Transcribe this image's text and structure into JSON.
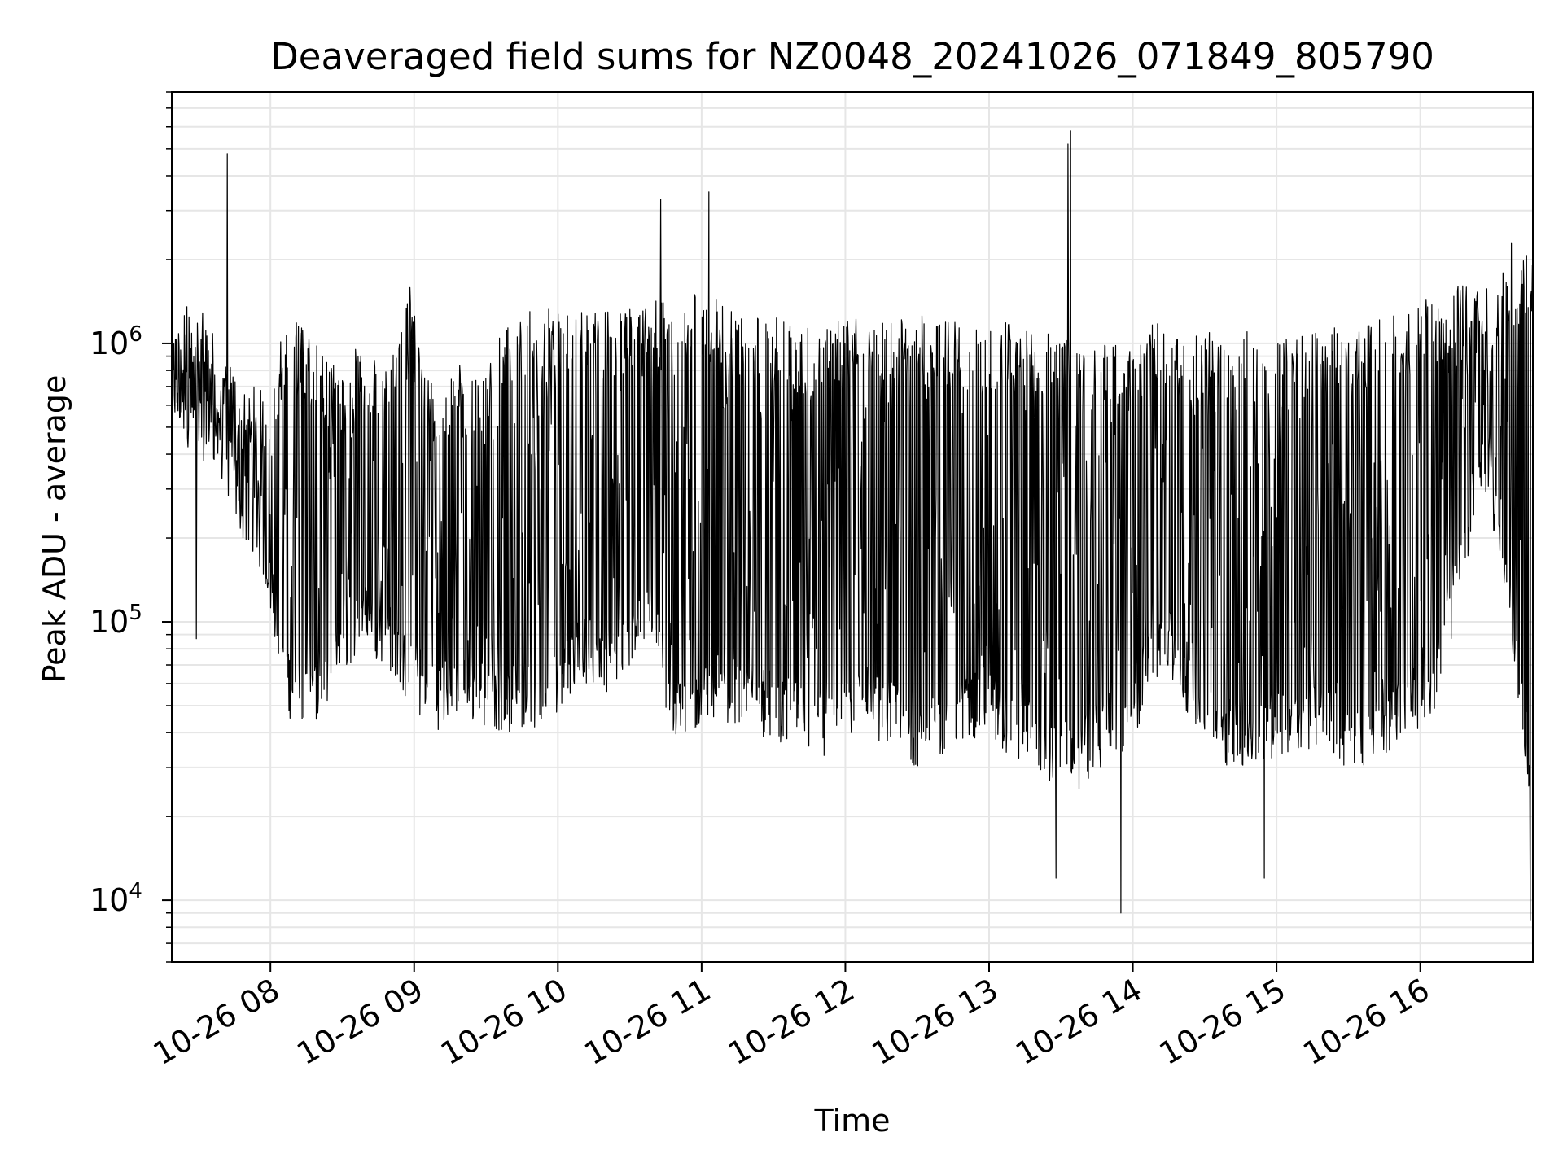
{
  "chart_data": {
    "type": "line",
    "title": "Deaveraged field sums for NZ0048_20241026_071849_805790",
    "xlabel": "Time",
    "ylabel": "Peak ADU - average",
    "yscale": "log",
    "xlim": [
      "2024-10-26 07:18:49",
      "2024-10-26 16:47:00"
    ],
    "ylim": [
      6000,
      8000000
    ],
    "x_ticks": [
      "2024-10-26 08:00",
      "2024-10-26 09:00",
      "2024-10-26 10:00",
      "2024-10-26 11:00",
      "2024-10-26 12:00",
      "2024-10-26 13:00",
      "2024-10-26 14:00",
      "2024-10-26 15:00",
      "2024-10-26 16:00"
    ],
    "x_tick_labels": [
      "10-26 08",
      "10-26 09",
      "10-26 10",
      "10-26 11",
      "10-26 12",
      "10-26 13",
      "10-26 14",
      "10-26 15",
      "10-26 16"
    ],
    "y_ticks": [
      {
        "value": 10000,
        "base": "10",
        "exp": "4"
      },
      {
        "value": 100000,
        "base": "10",
        "exp": "5"
      },
      {
        "value": 1000000,
        "base": "10",
        "exp": "6"
      }
    ],
    "grid": true,
    "line_color": "#000000",
    "grid_color": "#e6e6e6",
    "series": [
      {
        "x": [
          "07:18",
          "07:28",
          "07:38",
          "07:48",
          "07:58",
          "08:08",
          "08:18",
          "08:28",
          "08:38",
          "08:48",
          "08:58",
          "09:08",
          "09:18",
          "09:28",
          "09:38",
          "09:48",
          "09:58",
          "10:08",
          "10:18",
          "10:28",
          "10:38",
          "10:48",
          "10:58",
          "11:08",
          "11:18",
          "11:28",
          "11:38",
          "11:48",
          "11:58",
          "12:08",
          "12:18",
          "12:28",
          "12:38",
          "12:48",
          "12:58",
          "13:08",
          "13:18",
          "13:28",
          "13:38",
          "13:48",
          "13:58",
          "14:08",
          "14:18",
          "14:28",
          "14:38",
          "14:48",
          "14:58",
          "15:08",
          "15:18",
          "15:28",
          "15:38",
          "15:48",
          "15:58",
          "16:08",
          "16:18",
          "16:28",
          "16:38",
          "16:46"
        ],
        "low": [
          500000,
          400000,
          350000,
          200000,
          130000,
          45000,
          40000,
          60000,
          80000,
          70000,
          50000,
          40000,
          45000,
          42000,
          40000,
          38000,
          45000,
          60000,
          55000,
          60000,
          90000,
          35000,
          40000,
          45000,
          40000,
          38000,
          35000,
          30000,
          35000,
          40000,
          35000,
          30000,
          30000,
          35000,
          40000,
          30000,
          30000,
          25000,
          25000,
          30000,
          30000,
          60000,
          55000,
          40000,
          30000,
          30000,
          30000,
          35000,
          35000,
          30000,
          30000,
          35000,
          40000,
          50000,
          150000,
          300000,
          80000,
          20000
        ],
        "high": [
          1100000,
          1500000,
          1000000,
          700000,
          700000,
          1300000,
          1000000,
          900000,
          1000000,
          800000,
          1700000,
          700000,
          900000,
          700000,
          1200000,
          1300000,
          1400000,
          1300000,
          1300000,
          1300000,
          1600000,
          1300000,
          1700000,
          1400000,
          1200000,
          1300000,
          1200000,
          1100000,
          1300000,
          1200000,
          1300000,
          1300000,
          1200000,
          1200000,
          1100000,
          1200000,
          1100000,
          1100000,
          1000000,
          1000000,
          1000000,
          1200000,
          1100000,
          1100000,
          1200000,
          1100000,
          1000000,
          1100000,
          1100000,
          1200000,
          1200000,
          1300000,
          1400000,
          1500000,
          1700000,
          1600000,
          2000000,
          2200000
        ],
        "spikes": [
          {
            "x": "07:42",
            "y": 4800000
          },
          {
            "x": "10:43",
            "y": 3300000
          },
          {
            "x": "11:03",
            "y": 3500000
          },
          {
            "x": "13:33",
            "y": 5200000
          },
          {
            "x": "13:34",
            "y": 5800000
          },
          {
            "x": "16:38",
            "y": 2300000
          }
        ],
        "dips": [
          {
            "x": "07:29",
            "y": 87000
          },
          {
            "x": "13:28",
            "y": 12000
          },
          {
            "x": "13:55",
            "y": 9000
          },
          {
            "x": "14:55",
            "y": 12000
          },
          {
            "x": "16:46",
            "y": 8500
          }
        ]
      }
    ]
  }
}
